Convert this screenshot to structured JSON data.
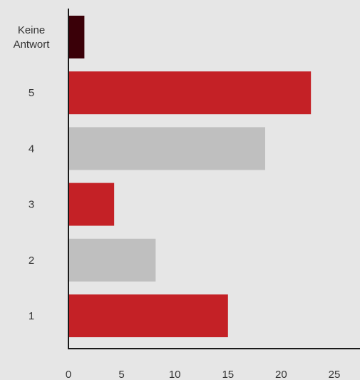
{
  "chart_data": {
    "type": "bar",
    "orientation": "horizontal",
    "categories": [
      [
        "Keine",
        "Antwort"
      ],
      [
        "5"
      ],
      [
        "4"
      ],
      [
        "3"
      ],
      [
        "2"
      ],
      [
        "1"
      ]
    ],
    "values": [
      1.5,
      22.8,
      18.5,
      4.3,
      8.2,
      15.0
    ],
    "colors": [
      "#3a0008",
      "#c42126",
      "#bfbfbf",
      "#c42126",
      "#bfbfbf",
      "#c42126"
    ],
    "x_ticks": [
      0,
      5,
      10,
      15,
      20,
      25
    ],
    "xlim": [
      0,
      26
    ],
    "grid": false,
    "title": "",
    "xlabel": "",
    "ylabel": ""
  }
}
